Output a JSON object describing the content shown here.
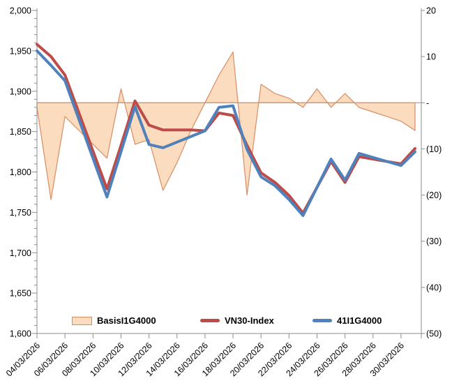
{
  "chart_data": {
    "type": "combo-area-line",
    "title": "",
    "dates": [
      "04/03/2026",
      "05/03/2026",
      "06/03/2026",
      "07/03/2026",
      "08/03/2026",
      "09/03/2026",
      "10/03/2026",
      "11/03/2026",
      "12/03/2026",
      "13/03/2026",
      "14/03/2026",
      "15/03/2026",
      "16/03/2026",
      "17/03/2026",
      "18/03/2026",
      "19/03/2026",
      "20/03/2026",
      "21/03/2026",
      "22/03/2026",
      "23/03/2026",
      "24/03/2026",
      "25/03/2026",
      "26/03/2026",
      "27/03/2026",
      "28/03/2026",
      "29/03/2026",
      "30/03/2026",
      "31/03/2026"
    ],
    "x_tick_labels": [
      "04/03/2026",
      "06/03/2026",
      "08/03/2026",
      "10/03/2026",
      "12/03/2026",
      "14/03/2026",
      "16/03/2026",
      "18/03/2026",
      "20/03/2026",
      "22/03/2026",
      "24/03/2026",
      "26/03/2026",
      "28/03/2026",
      "30/03/2026"
    ],
    "left_axis": {
      "min": 1600,
      "max": 2000,
      "major_step": 50,
      "minor_step": 10,
      "labels": [
        "2,000",
        "1,950",
        "1,900",
        "1,850",
        "1,800",
        "1,750",
        "1,700",
        "1,650",
        "1,600"
      ]
    },
    "right_axis": {
      "max": 20,
      "min": -50,
      "step": 10,
      "labels": [
        "20",
        "10",
        "-",
        "(10)",
        "(20)",
        "(30)",
        "(40)",
        "(50)"
      ]
    },
    "series": [
      {
        "name": "BasisI1G4000",
        "type": "area",
        "axis": "right",
        "fill": "#FBDCBF",
        "stroke": "#D98C62",
        "values": [
          -1,
          -21,
          -3,
          -6,
          -9,
          -12,
          3,
          -9,
          -8,
          -19,
          -13,
          -6,
          0,
          6,
          11,
          -20,
          4,
          2,
          1,
          -1,
          3,
          -1,
          2,
          -1,
          -2,
          -3,
          -4,
          -6
        ]
      },
      {
        "name": "VN30-Index",
        "type": "line",
        "axis": "left",
        "stroke": "#BE4B48",
        "values": [
          1958,
          1943,
          1920,
          1873,
          1826,
          1779,
          1833,
          1888,
          1858,
          1852,
          1852,
          1852,
          1851,
          1873,
          1870,
          1833,
          1799,
          1787,
          1771,
          1749,
          1781,
          1813,
          1787,
          1819,
          1816,
          1813,
          1810,
          1829
        ]
      },
      {
        "name": "41I1G4000",
        "type": "line",
        "axis": "left",
        "stroke": "#4F81BD",
        "values": [
          1950,
          1932,
          1913,
          1865,
          1817,
          1769,
          1825,
          1881,
          1834,
          1830,
          1837,
          1844,
          1851,
          1880,
          1882,
          1828,
          1794,
          1783,
          1766,
          1746,
          1781,
          1816,
          1790,
          1823,
          1818,
          1813,
          1808,
          1825
        ]
      }
    ],
    "legend_position": "bottom",
    "grid": false,
    "axis_color": "#8C8C8C",
    "text_color": "#000000"
  }
}
